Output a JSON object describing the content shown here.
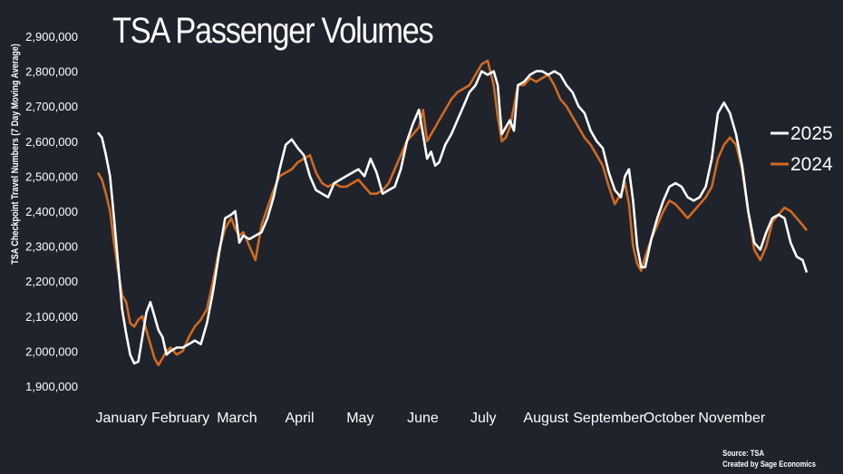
{
  "chart_data": {
    "type": "line",
    "title": "TSA Passenger Volumes",
    "ylabel": "TSA Checkpoint Travel Numbers (7 Day Moving Average)",
    "xlabel": "",
    "ylim": [
      1900000,
      2900000
    ],
    "yticks": [
      "1,900,000",
      "2,000,000",
      "2,100,000",
      "2,200,000",
      "2,300,000",
      "2,400,000",
      "2,500,000",
      "2,600,000",
      "2,700,000",
      "2,800,000",
      "2,900,000"
    ],
    "months": [
      "January",
      "February",
      "March",
      "April",
      "May",
      "June",
      "July",
      "August",
      "September",
      "October",
      "November"
    ],
    "xlim": [
      1,
      336
    ],
    "series": [
      {
        "name": "2025",
        "color": "#ffffff",
        "points": [
          [
            1,
            2625000
          ],
          [
            3,
            2610000
          ],
          [
            5,
            2560000
          ],
          [
            7,
            2500000
          ],
          [
            9,
            2380000
          ],
          [
            11,
            2250000
          ],
          [
            13,
            2120000
          ],
          [
            15,
            2050000
          ],
          [
            17,
            1990000
          ],
          [
            19,
            1965000
          ],
          [
            21,
            1970000
          ],
          [
            23,
            2040000
          ],
          [
            25,
            2110000
          ],
          [
            27,
            2140000
          ],
          [
            29,
            2100000
          ],
          [
            31,
            2060000
          ],
          [
            33,
            2040000
          ],
          [
            35,
            1990000
          ],
          [
            37,
            2000000
          ],
          [
            40,
            2010000
          ],
          [
            43,
            2010000
          ],
          [
            46,
            2020000
          ],
          [
            49,
            2030000
          ],
          [
            52,
            2020000
          ],
          [
            55,
            2080000
          ],
          [
            58,
            2170000
          ],
          [
            61,
            2280000
          ],
          [
            64,
            2380000
          ],
          [
            67,
            2390000
          ],
          [
            69,
            2400000
          ],
          [
            71,
            2310000
          ],
          [
            73,
            2330000
          ],
          [
            76,
            2320000
          ],
          [
            79,
            2330000
          ],
          [
            82,
            2340000
          ],
          [
            85,
            2380000
          ],
          [
            88,
            2440000
          ],
          [
            91,
            2520000
          ],
          [
            94,
            2590000
          ],
          [
            97,
            2605000
          ],
          [
            100,
            2580000
          ],
          [
            103,
            2560000
          ],
          [
            106,
            2500000
          ],
          [
            109,
            2460000
          ],
          [
            112,
            2450000
          ],
          [
            115,
            2440000
          ],
          [
            118,
            2480000
          ],
          [
            121,
            2490000
          ],
          [
            124,
            2500000
          ],
          [
            127,
            2510000
          ],
          [
            130,
            2520000
          ],
          [
            133,
            2500000
          ],
          [
            136,
            2550000
          ],
          [
            139,
            2510000
          ],
          [
            142,
            2450000
          ],
          [
            145,
            2460000
          ],
          [
            148,
            2470000
          ],
          [
            151,
            2520000
          ],
          [
            154,
            2600000
          ],
          [
            157,
            2650000
          ],
          [
            160,
            2690000
          ],
          [
            162,
            2620000
          ],
          [
            164,
            2550000
          ],
          [
            166,
            2570000
          ],
          [
            168,
            2530000
          ],
          [
            170,
            2540000
          ],
          [
            173,
            2590000
          ],
          [
            176,
            2620000
          ],
          [
            179,
            2660000
          ],
          [
            182,
            2700000
          ],
          [
            185,
            2740000
          ],
          [
            188,
            2760000
          ],
          [
            191,
            2800000
          ],
          [
            194,
            2790000
          ],
          [
            197,
            2800000
          ],
          [
            199,
            2760000
          ],
          [
            201,
            2620000
          ],
          [
            203,
            2640000
          ],
          [
            205,
            2660000
          ],
          [
            207,
            2630000
          ],
          [
            209,
            2760000
          ],
          [
            212,
            2770000
          ],
          [
            215,
            2790000
          ],
          [
            218,
            2800000
          ],
          [
            221,
            2800000
          ],
          [
            224,
            2790000
          ],
          [
            227,
            2800000
          ],
          [
            230,
            2790000
          ],
          [
            233,
            2760000
          ],
          [
            236,
            2740000
          ],
          [
            239,
            2700000
          ],
          [
            242,
            2680000
          ],
          [
            245,
            2630000
          ],
          [
            248,
            2600000
          ],
          [
            251,
            2580000
          ],
          [
            254,
            2510000
          ],
          [
            257,
            2460000
          ],
          [
            260,
            2440000
          ],
          [
            262,
            2500000
          ],
          [
            264,
            2520000
          ],
          [
            266,
            2430000
          ],
          [
            268,
            2300000
          ],
          [
            270,
            2240000
          ],
          [
            272,
            2240000
          ],
          [
            275,
            2320000
          ],
          [
            278,
            2380000
          ],
          [
            281,
            2430000
          ],
          [
            284,
            2470000
          ],
          [
            287,
            2480000
          ],
          [
            290,
            2470000
          ],
          [
            293,
            2440000
          ],
          [
            296,
            2430000
          ],
          [
            299,
            2440000
          ],
          [
            302,
            2470000
          ],
          [
            305,
            2550000
          ],
          [
            308,
            2680000
          ],
          [
            311,
            2710000
          ],
          [
            314,
            2680000
          ],
          [
            317,
            2620000
          ],
          [
            320,
            2530000
          ],
          [
            323,
            2400000
          ],
          [
            326,
            2310000
          ],
          [
            329,
            2290000
          ],
          [
            332,
            2340000
          ],
          [
            335,
            2380000
          ],
          [
            338,
            2390000
          ],
          [
            341,
            2380000
          ],
          [
            344,
            2310000
          ],
          [
            347,
            2270000
          ],
          [
            350,
            2260000
          ],
          [
            352,
            2225000
          ]
        ]
      },
      {
        "name": "2024",
        "color": "#d2691e",
        "points": [
          [
            1,
            2510000
          ],
          [
            3,
            2490000
          ],
          [
            5,
            2450000
          ],
          [
            7,
            2400000
          ],
          [
            9,
            2310000
          ],
          [
            11,
            2230000
          ],
          [
            13,
            2160000
          ],
          [
            15,
            2140000
          ],
          [
            17,
            2080000
          ],
          [
            19,
            2070000
          ],
          [
            21,
            2090000
          ],
          [
            23,
            2100000
          ],
          [
            25,
            2060000
          ],
          [
            27,
            2020000
          ],
          [
            29,
            1980000
          ],
          [
            31,
            1960000
          ],
          [
            33,
            1980000
          ],
          [
            35,
            2000000
          ],
          [
            37,
            2010000
          ],
          [
            40,
            1990000
          ],
          [
            43,
            2000000
          ],
          [
            46,
            2040000
          ],
          [
            49,
            2070000
          ],
          [
            52,
            2090000
          ],
          [
            55,
            2120000
          ],
          [
            58,
            2200000
          ],
          [
            61,
            2290000
          ],
          [
            64,
            2350000
          ],
          [
            67,
            2380000
          ],
          [
            69,
            2350000
          ],
          [
            71,
            2330000
          ],
          [
            73,
            2340000
          ],
          [
            76,
            2300000
          ],
          [
            79,
            2260000
          ],
          [
            82,
            2360000
          ],
          [
            85,
            2410000
          ],
          [
            88,
            2460000
          ],
          [
            91,
            2500000
          ],
          [
            94,
            2510000
          ],
          [
            97,
            2520000
          ],
          [
            100,
            2540000
          ],
          [
            103,
            2550000
          ],
          [
            106,
            2560000
          ],
          [
            109,
            2510000
          ],
          [
            112,
            2480000
          ],
          [
            115,
            2470000
          ],
          [
            118,
            2480000
          ],
          [
            121,
            2470000
          ],
          [
            124,
            2470000
          ],
          [
            127,
            2480000
          ],
          [
            130,
            2490000
          ],
          [
            133,
            2470000
          ],
          [
            136,
            2450000
          ],
          [
            139,
            2450000
          ],
          [
            142,
            2460000
          ],
          [
            145,
            2480000
          ],
          [
            148,
            2520000
          ],
          [
            151,
            2560000
          ],
          [
            154,
            2600000
          ],
          [
            157,
            2620000
          ],
          [
            160,
            2640000
          ],
          [
            162,
            2690000
          ],
          [
            164,
            2600000
          ],
          [
            166,
            2620000
          ],
          [
            168,
            2640000
          ],
          [
            170,
            2660000
          ],
          [
            173,
            2690000
          ],
          [
            176,
            2720000
          ],
          [
            179,
            2740000
          ],
          [
            182,
            2750000
          ],
          [
            185,
            2760000
          ],
          [
            188,
            2790000
          ],
          [
            191,
            2820000
          ],
          [
            194,
            2830000
          ],
          [
            197,
            2760000
          ],
          [
            199,
            2670000
          ],
          [
            201,
            2600000
          ],
          [
            203,
            2610000
          ],
          [
            205,
            2640000
          ],
          [
            207,
            2700000
          ],
          [
            209,
            2760000
          ],
          [
            212,
            2760000
          ],
          [
            215,
            2780000
          ],
          [
            218,
            2770000
          ],
          [
            221,
            2780000
          ],
          [
            224,
            2790000
          ],
          [
            227,
            2760000
          ],
          [
            230,
            2720000
          ],
          [
            233,
            2700000
          ],
          [
            236,
            2670000
          ],
          [
            239,
            2640000
          ],
          [
            242,
            2610000
          ],
          [
            245,
            2590000
          ],
          [
            248,
            2560000
          ],
          [
            251,
            2530000
          ],
          [
            254,
            2470000
          ],
          [
            257,
            2420000
          ],
          [
            260,
            2450000
          ],
          [
            262,
            2480000
          ],
          [
            264,
            2420000
          ],
          [
            266,
            2300000
          ],
          [
            268,
            2250000
          ],
          [
            270,
            2230000
          ],
          [
            272,
            2270000
          ],
          [
            275,
            2320000
          ],
          [
            278,
            2360000
          ],
          [
            281,
            2400000
          ],
          [
            284,
            2430000
          ],
          [
            287,
            2420000
          ],
          [
            290,
            2400000
          ],
          [
            293,
            2380000
          ],
          [
            296,
            2400000
          ],
          [
            299,
            2420000
          ],
          [
            302,
            2440000
          ],
          [
            305,
            2470000
          ],
          [
            308,
            2550000
          ],
          [
            311,
            2590000
          ],
          [
            314,
            2610000
          ],
          [
            317,
            2590000
          ],
          [
            320,
            2520000
          ],
          [
            323,
            2400000
          ],
          [
            326,
            2290000
          ],
          [
            329,
            2260000
          ],
          [
            332,
            2300000
          ],
          [
            335,
            2370000
          ],
          [
            338,
            2390000
          ],
          [
            341,
            2410000
          ],
          [
            344,
            2400000
          ],
          [
            347,
            2380000
          ],
          [
            350,
            2360000
          ],
          [
            352,
            2345000
          ]
        ]
      }
    ],
    "legend": {
      "position": "right",
      "labels": [
        "2025",
        "2024"
      ]
    }
  },
  "source": {
    "line1": "Source: TSA",
    "line2": "Created by Sage Economics"
  }
}
